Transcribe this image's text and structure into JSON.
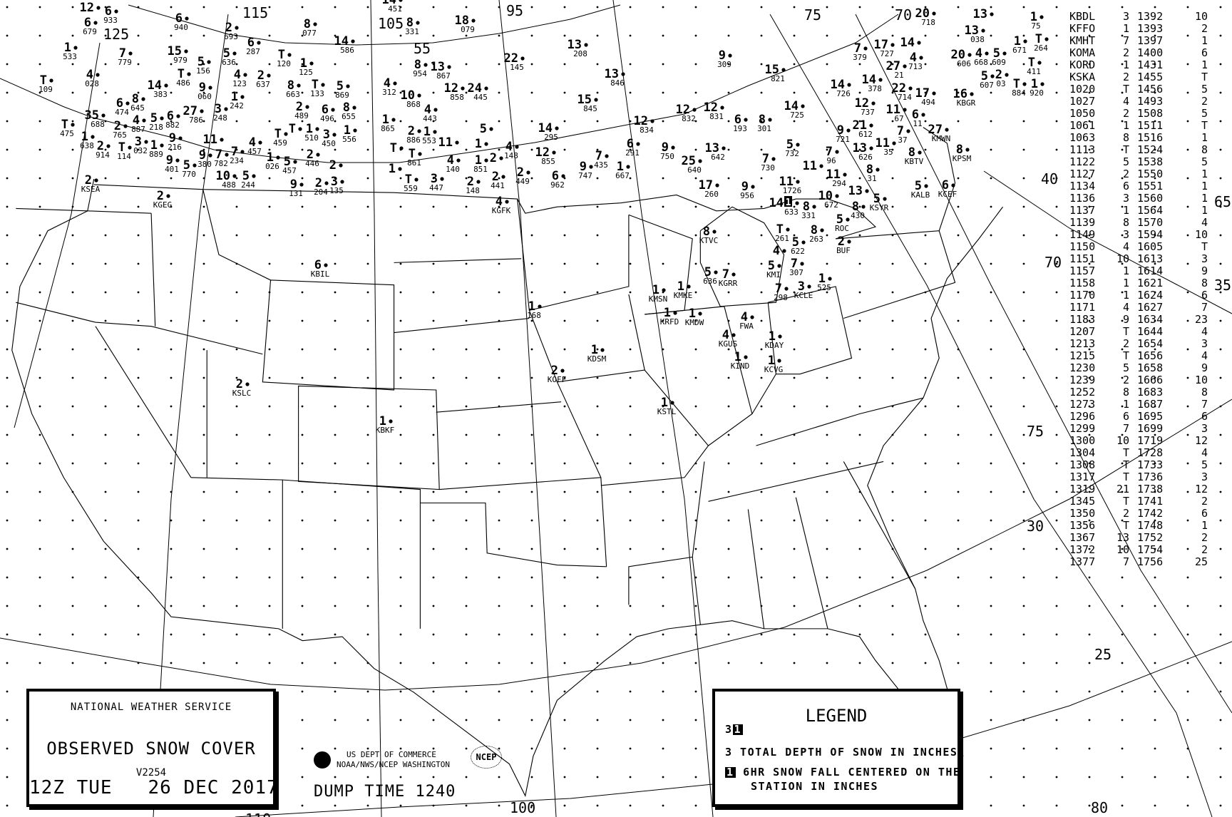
{
  "title_box": {
    "agency": "NATIONAL WEATHER SERVICE",
    "title": "OBSERVED SNOW COVER",
    "version": "V2254",
    "valid_time": "12Z TUE   26 DEC 2017"
  },
  "footer": {
    "dept_line1": "US DEPT OF COMMERCE",
    "dept_line2": "NOAA/NWS/NCEP WASHINGTON",
    "ncep_logo": "NCEP",
    "dump_time": "DUMP TIME 1240"
  },
  "legend": {
    "title": "LEGEND",
    "sample_depth": "3",
    "sample_6hr": "1",
    "line1": "3 TOTAL DEPTH OF SNOW IN INCHES",
    "line2_box": "1",
    "line2": "6HR SNOW FALL CENTERED ON THE",
    "line3": "STATION IN INCHES"
  },
  "graticule_labels": [
    "125",
    "115",
    "105",
    "95",
    "75",
    "70",
    "55",
    "40",
    "65",
    "70",
    "35",
    "75",
    "30",
    "25",
    "110",
    "100",
    "80"
  ],
  "station_table": [
    [
      "KBDL",
      "3",
      "1392",
      "10"
    ],
    [
      "KFFO",
      "1",
      "1393",
      "2"
    ],
    [
      "KMHT",
      "7",
      "1397",
      "1"
    ],
    [
      "KOMA",
      "2",
      "1400",
      "6"
    ],
    [
      "KORD",
      "1",
      "1431",
      "1"
    ],
    [
      "KSKA",
      "2",
      "1455",
      "T"
    ],
    [
      "1020",
      "T",
      "1456",
      "5"
    ],
    [
      "1027",
      "4",
      "1493",
      "2"
    ],
    [
      "1050",
      "2",
      "1508",
      "5"
    ],
    [
      "1061",
      "1",
      "1511",
      "T"
    ],
    [
      "1063",
      "8",
      "1516",
      "1"
    ],
    [
      "1113",
      "T",
      "1524",
      "8"
    ],
    [
      "1122",
      "5",
      "1538",
      "5"
    ],
    [
      "1127",
      "2",
      "1550",
      "1"
    ],
    [
      "1134",
      "6",
      "1551",
      "1"
    ],
    [
      "1136",
      "3",
      "1560",
      "1"
    ],
    [
      "1137",
      "1",
      "1564",
      "1"
    ],
    [
      "1139",
      "8",
      "1570",
      "4"
    ],
    [
      "1149",
      "3",
      "1594",
      "10"
    ],
    [
      "1150",
      "4",
      "1605",
      "T"
    ],
    [
      "1151",
      "10",
      "1613",
      "3"
    ],
    [
      "1157",
      "1",
      "1614",
      "9"
    ],
    [
      "1158",
      "1",
      "1621",
      "8"
    ],
    [
      "1170",
      "1",
      "1624",
      "6"
    ],
    [
      "1171",
      "4",
      "1627",
      "7"
    ],
    [
      "1183",
      "9",
      "1634",
      "23"
    ],
    [
      "1207",
      "T",
      "1644",
      "4"
    ],
    [
      "1213",
      "2",
      "1654",
      "3"
    ],
    [
      "1215",
      "T",
      "1656",
      "4"
    ],
    [
      "1230",
      "5",
      "1658",
      "9"
    ],
    [
      "1239",
      "2",
      "1666",
      "10"
    ],
    [
      "1252",
      "8",
      "1683",
      "8"
    ],
    [
      "1273",
      "1",
      "1687",
      "7"
    ],
    [
      "1296",
      "6",
      "1695",
      "6"
    ],
    [
      "1299",
      "7",
      "1699",
      "3"
    ],
    [
      "1300",
      "10",
      "1719",
      "12"
    ],
    [
      "1304",
      "T",
      "1728",
      "4"
    ],
    [
      "1308",
      "T",
      "1733",
      "5"
    ],
    [
      "1317",
      "T",
      "1736",
      "3"
    ],
    [
      "1319",
      "21",
      "1738",
      "12"
    ],
    [
      "1345",
      "T",
      "1741",
      "2"
    ],
    [
      "1350",
      "2",
      "1742",
      "6"
    ],
    [
      "1356",
      "T",
      "1748",
      "1"
    ],
    [
      "1367",
      "13",
      "1752",
      "2"
    ],
    [
      "1372",
      "10",
      "1754",
      "2"
    ],
    [
      "1377",
      "7",
      "1756",
      "25"
    ]
  ],
  "stations": [
    {
      "d": "2",
      "l": "KSEA"
    },
    {
      "d": "2",
      "l": "KGEG"
    },
    {
      "d": "1",
      "l": "533"
    },
    {
      "d": "7",
      "l": "779"
    },
    {
      "d": "4",
      "l": "028"
    },
    {
      "d": "T",
      "l": "109"
    },
    {
      "d": "15",
      "l": "979"
    },
    {
      "d": "5",
      "l": "156"
    },
    {
      "d": "T",
      "l": "486"
    },
    {
      "d": "14",
      "l": "383"
    },
    {
      "d": "8",
      "l": "645"
    },
    {
      "d": "6",
      "l": "474"
    },
    {
      "d": "4",
      "l": "887"
    },
    {
      "d": "5",
      "l": "218"
    },
    {
      "d": "6",
      "l": "882"
    },
    {
      "d": "27",
      "l": "786"
    },
    {
      "d": "9",
      "l": "060"
    },
    {
      "d": "9",
      "l": "216"
    },
    {
      "d": "35",
      "l": "688"
    },
    {
      "d": "2",
      "l": "765"
    },
    {
      "d": "T",
      "l": "475"
    },
    {
      "d": "1",
      "l": "638"
    },
    {
      "d": "2",
      "l": "914"
    },
    {
      "d": "T",
      "l": "114"
    },
    {
      "d": "3",
      "l": "032"
    },
    {
      "d": "1",
      "l": "889"
    },
    {
      "d": "9",
      "l": "401"
    },
    {
      "d": "5",
      "l": "770"
    },
    {
      "d": "9",
      "l": "380"
    },
    {
      "d": "7",
      "l": "782"
    },
    {
      "d": "10",
      "l": "488"
    },
    {
      "d": "5",
      "l": "244"
    },
    {
      "d": "6",
      "l": "940"
    },
    {
      "d": "2",
      "l": "693"
    },
    {
      "d": "6",
      "l": "287"
    },
    {
      "d": "5",
      "l": "636"
    },
    {
      "d": "4",
      "l": "123"
    },
    {
      "d": "2",
      "l": "637"
    },
    {
      "d": "1",
      "l": "242"
    },
    {
      "d": "3",
      "l": "248"
    },
    {
      "d": "11",
      "l": ""
    },
    {
      "d": "7",
      "l": "234"
    },
    {
      "d": "4",
      "l": "457"
    },
    {
      "d": "1",
      "l": "026"
    },
    {
      "d": "5",
      "l": "457"
    },
    {
      "d": "9",
      "l": "131"
    },
    {
      "d": "2",
      "l": "446"
    },
    {
      "d": "2",
      "l": "204"
    },
    {
      "d": "3",
      "l": "135"
    },
    {
      "d": "2",
      "l": ""
    },
    {
      "d": "T",
      "l": "120"
    },
    {
      "d": "1",
      "l": "125"
    },
    {
      "d": "8",
      "l": "663"
    },
    {
      "d": "T",
      "l": "133"
    },
    {
      "d": "2",
      "l": "489"
    },
    {
      "d": "T",
      "l": ""
    },
    {
      "d": "1",
      "l": "510"
    },
    {
      "d": "T",
      "l": "459"
    },
    {
      "d": "6",
      "l": "496"
    },
    {
      "d": "3",
      "l": "450"
    },
    {
      "d": "8",
      "l": "077"
    },
    {
      "d": "14",
      "l": "586"
    },
    {
      "d": "5",
      "l": "869"
    },
    {
      "d": "8",
      "l": "655"
    },
    {
      "d": "1",
      "l": "556"
    },
    {
      "d": "12",
      "l": ""
    },
    {
      "d": "6",
      "l": "679"
    },
    {
      "d": "6",
      "l": "933"
    },
    {
      "d": "14",
      "l": "451"
    },
    {
      "d": "18",
      "l": "079"
    },
    {
      "d": "8",
      "l": "331"
    },
    {
      "d": "8",
      "l": "954"
    },
    {
      "d": "13",
      "l": "867"
    },
    {
      "d": "4",
      "l": "312"
    },
    {
      "d": "12",
      "l": "858"
    },
    {
      "d": "24",
      "l": "445"
    },
    {
      "d": "10",
      "l": "868"
    },
    {
      "d": "4",
      "l": "443"
    },
    {
      "d": "1",
      "l": "865"
    },
    {
      "d": "2",
      "l": "886"
    },
    {
      "d": "1",
      "l": "553"
    },
    {
      "d": "11",
      "l": ""
    },
    {
      "d": "5",
      "l": ""
    },
    {
      "d": "1",
      "l": ""
    },
    {
      "d": "4",
      "l": "148"
    },
    {
      "d": "12",
      "l": "855"
    },
    {
      "d": "1",
      "l": "851"
    },
    {
      "d": "4",
      "l": "140"
    },
    {
      "d": "T",
      "l": "861"
    },
    {
      "d": "T",
      "l": ""
    },
    {
      "d": "1",
      "l": ""
    },
    {
      "d": "T",
      "l": "559"
    },
    {
      "d": "3",
      "l": "447"
    },
    {
      "d": "2",
      "l": "148"
    },
    {
      "d": "2",
      "l": "441"
    },
    {
      "d": "2",
      "l": ""
    },
    {
      "d": "2",
      "l": "449"
    },
    {
      "d": "6",
      "l": "962"
    },
    {
      "d": "4",
      "l": "KGFK"
    },
    {
      "d": "22",
      "l": "145"
    },
    {
      "d": "13",
      "l": "208"
    },
    {
      "d": "13",
      "l": "846"
    },
    {
      "d": "15",
      "l": "845"
    },
    {
      "d": "14",
      "l": "295"
    },
    {
      "d": "9",
      "l": "747"
    },
    {
      "d": "7",
      "l": "435"
    },
    {
      "d": "1",
      "l": "667"
    },
    {
      "d": "6",
      "l": "291"
    },
    {
      "d": "9",
      "l": "750"
    },
    {
      "d": "12",
      "l": "834"
    },
    {
      "d": "12",
      "l": "832"
    },
    {
      "d": "12",
      "l": "831"
    },
    {
      "d": "6",
      "l": "193"
    },
    {
      "d": "13",
      "l": "642"
    },
    {
      "d": "25",
      "l": "640"
    },
    {
      "d": "17",
      "l": "260"
    },
    {
      "d": "9",
      "l": "309"
    },
    {
      "d": "9",
      "l": "956"
    },
    {
      "d": "15",
      "l": "821"
    },
    {
      "d": "14",
      "l": "725"
    },
    {
      "d": "8",
      "l": "301"
    },
    {
      "d": "7",
      "l": "730"
    },
    {
      "d": "5",
      "l": "732"
    },
    {
      "d": "14",
      "l": "726"
    },
    {
      "d": "12",
      "l": "737"
    },
    {
      "d": "9",
      "l": "721"
    },
    {
      "d": "7",
      "l": "96"
    },
    {
      "d": "13",
      "l": "626"
    },
    {
      "d": "11",
      "l": "35"
    },
    {
      "d": "8",
      "l": "31"
    },
    {
      "d": "11",
      "l": ""
    },
    {
      "d": "11",
      "l": "294"
    },
    {
      "d": "11",
      "l": "1726"
    },
    {
      "d": "10",
      "l": "672"
    },
    {
      "d": "13",
      "l": ""
    },
    {
      "d": "8",
      "l": "430"
    },
    {
      "d": "5",
      "l": "KSYR"
    },
    {
      "d": "5",
      "l": "ROC"
    },
    {
      "d": "7",
      "l": "379"
    },
    {
      "d": "17",
      "l": "727"
    },
    {
      "d": "14",
      "l": ""
    },
    {
      "d": "4",
      "l": "713"
    },
    {
      "d": "27",
      "l": "21"
    },
    {
      "d": "14",
      "l": "378"
    },
    {
      "d": "22",
      "l": "714"
    },
    {
      "d": "17",
      "l": "494"
    },
    {
      "d": "11",
      "l": "67"
    },
    {
      "d": "6",
      "l": "11"
    },
    {
      "d": "21",
      "l": "612"
    },
    {
      "d": "7",
      "l": "37"
    },
    {
      "d": "8",
      "l": "KBTV"
    },
    {
      "d": "27",
      "l": "KMWN"
    },
    {
      "d": "8",
      "l": "KPSM"
    },
    {
      "d": "16",
      "l": "KBGR"
    },
    {
      "d": "5",
      "l": "KALB"
    },
    {
      "d": "6",
      "l": "KCEF"
    },
    {
      "d": "20",
      "l": "606"
    },
    {
      "d": "4",
      "l": "668"
    },
    {
      "d": "5",
      "l": "609"
    },
    {
      "d": "5",
      "l": "607"
    },
    {
      "d": "2",
      "l": "03"
    },
    {
      "d": "13",
      "l": "038"
    },
    {
      "d": "13",
      "l": ""
    },
    {
      "d": "T",
      "l": "884"
    },
    {
      "d": "1",
      "l": "920"
    },
    {
      "d": "T",
      "l": "411"
    },
    {
      "d": "T",
      "l": "264"
    },
    {
      "d": "1",
      "l": "671"
    },
    {
      "d": "1",
      "l": "75"
    },
    {
      "d": "20",
      "l": "718"
    },
    {
      "d": "14",
      "l": "633",
      "s": "1"
    },
    {
      "d": "8",
      "l": "KTVC"
    },
    {
      "d": "5",
      "l": "636"
    },
    {
      "d": "7",
      "l": "KGRR"
    },
    {
      "d": "1",
      "l": "KMSN"
    },
    {
      "d": "1",
      "l": "KMKE"
    },
    {
      "d": "1",
      "l": "KRFD"
    },
    {
      "d": "1",
      "l": "KMDW"
    },
    {
      "d": "4",
      "l": "FWA"
    },
    {
      "d": "4",
      "l": "KGUS"
    },
    {
      "d": "1",
      "l": "KDAY"
    },
    {
      "d": "1",
      "l": "KIND"
    },
    {
      "d": "1",
      "l": "KCVG"
    },
    {
      "d": "1",
      "l": "KSTL"
    },
    {
      "d": "T",
      "l": "261"
    },
    {
      "d": "5",
      "l": "622"
    },
    {
      "d": "4",
      "l": ""
    },
    {
      "d": "5",
      "l": "KMI"
    },
    {
      "d": "7",
      "l": "307"
    },
    {
      "d": "7",
      "l": "298"
    },
    {
      "d": "3",
      "l": "KCLE"
    },
    {
      "d": "1",
      "l": "525"
    },
    {
      "d": "8",
      "l": "263"
    },
    {
      "d": "8",
      "l": "331"
    },
    {
      "d": "2",
      "l": "BUF"
    },
    {
      "d": "6",
      "l": "KBIL"
    },
    {
      "d": "2",
      "l": "KSLC"
    },
    {
      "d": "1",
      "l": "KBKF"
    },
    {
      "d": "1",
      "l": "168"
    },
    {
      "d": "1",
      "l": "KDSM"
    },
    {
      "d": "2",
      "l": "KOFF"
    }
  ]
}
